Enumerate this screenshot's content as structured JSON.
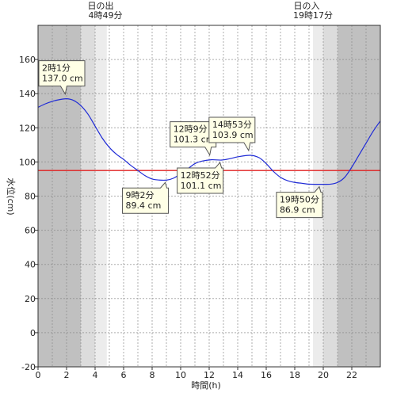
{
  "sun": {
    "rise_label": "日の出",
    "rise_time": "4時49分",
    "set_label": "日の入",
    "set_time": "19時17分"
  },
  "chart_data": {
    "type": "line",
    "xlabel": "時間(h)",
    "ylabel": "水位(cm)",
    "xlim": [
      0,
      24
    ],
    "ylim": [
      -20,
      180
    ],
    "x_ticks": [
      0,
      2,
      4,
      6,
      8,
      10,
      12,
      14,
      16,
      18,
      20,
      22
    ],
    "y_ticks": [
      -20,
      0,
      20,
      40,
      60,
      80,
      100,
      120,
      140,
      160
    ],
    "grid": true,
    "reference_line": {
      "y": 95,
      "color": "#e02020"
    },
    "night_shading": [
      {
        "from": 0,
        "to": 3.0,
        "shade": "#c0c0c0"
      },
      {
        "from": 3.0,
        "to": 4.0,
        "shade": "#dcdcdc"
      },
      {
        "from": 4.0,
        "to": 4.82,
        "shade": "#ececec"
      },
      {
        "from": 19.28,
        "to": 20.0,
        "shade": "#ececec"
      },
      {
        "from": 20.0,
        "to": 21.0,
        "shade": "#dcdcdc"
      },
      {
        "from": 21.0,
        "to": 24,
        "shade": "#c0c0c0"
      }
    ],
    "series": [
      {
        "color": "#1f2bd6",
        "x": [
          0,
          0.5,
          1.0,
          1.5,
          2.02,
          2.5,
          3.0,
          3.5,
          4.0,
          4.5,
          5.0,
          5.5,
          6.0,
          6.5,
          7.0,
          7.5,
          8.0,
          8.5,
          9.03,
          9.5,
          10.0,
          10.5,
          11.0,
          11.5,
          12.15,
          12.87,
          13.5,
          14.0,
          14.88,
          15.5,
          16.0,
          16.5,
          17.0,
          17.5,
          18.0,
          18.5,
          19.0,
          19.5,
          19.83,
          20.5,
          21.0,
          21.5,
          22.0,
          22.5,
          23.0,
          23.5,
          24.0
        ],
        "y": [
          132,
          134,
          135.5,
          136.5,
          137.0,
          136,
          133,
          128,
          121,
          114,
          108.5,
          104.5,
          101.5,
          98,
          95,
          92,
          90,
          89.4,
          89.4,
          90.5,
          93,
          96,
          99,
          100.5,
          101.3,
          101.1,
          102,
          103,
          103.9,
          102.5,
          99,
          94.5,
          91,
          89,
          88,
          87.5,
          87,
          86.9,
          86.9,
          87,
          88,
          91,
          97,
          104,
          111,
          118,
          124
        ]
      }
    ],
    "annotations": [
      {
        "label": "2時1分",
        "value": "137.0 cm",
        "x": 2.02,
        "y": 137.0,
        "pos": "above"
      },
      {
        "label": "9時2分",
        "value": "89.4 cm",
        "x": 9.03,
        "y": 89.4,
        "pos": "below"
      },
      {
        "label": "12時9分",
        "value": "101.3 cm",
        "x": 12.15,
        "y": 101.3,
        "pos": "above"
      },
      {
        "label": "12時52分",
        "value": "101.1 cm",
        "x": 12.87,
        "y": 101.1,
        "pos": "below"
      },
      {
        "label": "14時53分",
        "value": "103.9 cm",
        "x": 14.88,
        "y": 103.9,
        "pos": "above"
      },
      {
        "label": "19時50分",
        "value": "86.9 cm",
        "x": 19.83,
        "y": 86.9,
        "pos": "below"
      }
    ]
  }
}
